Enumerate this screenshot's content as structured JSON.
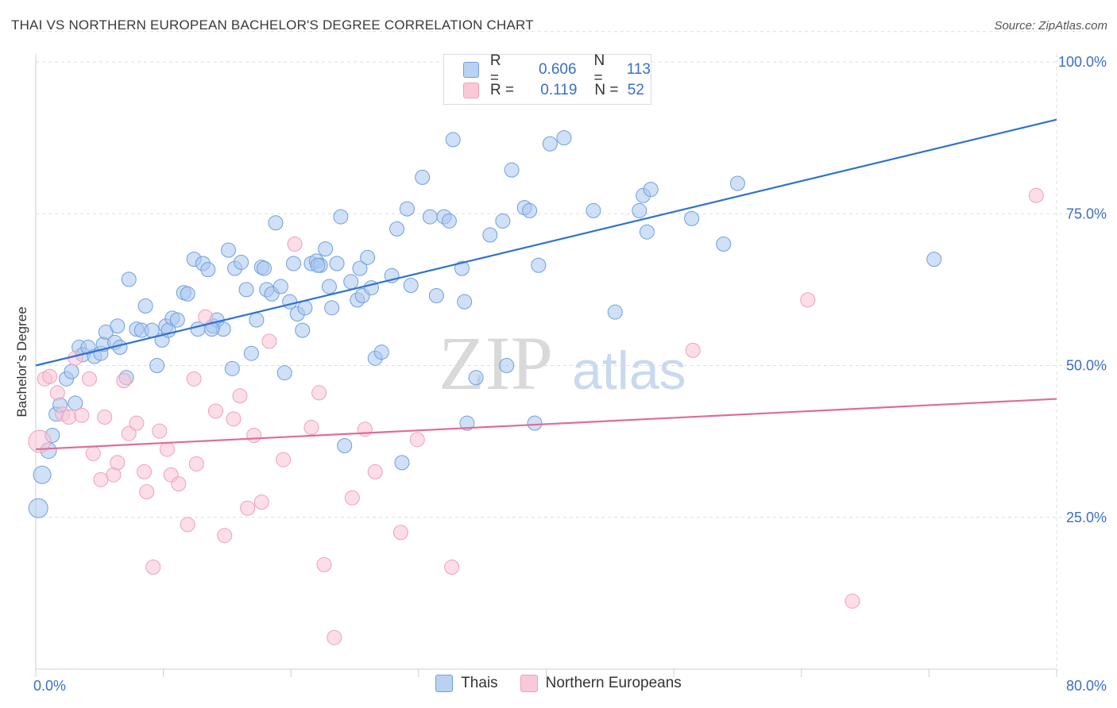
{
  "header": {
    "title": "THAI VS NORTHERN EUROPEAN BACHELOR'S DEGREE CORRELATION CHART",
    "source": "Source: ZipAtlas.com"
  },
  "watermark": {
    "zip": "ZIP",
    "atlas": "atlas"
  },
  "legend": {
    "rows": [
      {
        "r_label": "R =",
        "r_value": "0.606",
        "n_label": "N =",
        "n_value": "113",
        "color": "#6f9fe0"
      },
      {
        "r_label": "R =",
        "r_value": "0.119",
        "n_label": "N =",
        "n_value": "52",
        "color": "#f0a0bb"
      }
    ]
  },
  "bottom_legend": {
    "thais": "Thais",
    "northern_europeans": "Northern Europeans"
  },
  "chart_data": {
    "type": "scatter",
    "title": "THAI VS NORTHERN EUROPEAN BACHELOR'S DEGREE CORRELATION CHART",
    "ylabel": "Bachelor's Degree",
    "xlim": [
      0,
      80
    ],
    "ylim": [
      0,
      105
    ],
    "x_ticks": [
      {
        "v": 0,
        "label": "0.0%"
      },
      {
        "v": 80,
        "label": "80.0%"
      }
    ],
    "y_ticks": [
      {
        "v": 25,
        "label": "25.0%"
      },
      {
        "v": 50,
        "label": "50.0%"
      },
      {
        "v": 75,
        "label": "75.0%"
      },
      {
        "v": 100,
        "label": "100.0%"
      }
    ],
    "grid": true,
    "series": [
      {
        "name": "Thais",
        "color": "#6f9fe0",
        "fill": "#a9c6ee",
        "r": 0.606,
        "n": 113,
        "trend": [
          [
            0,
            50.0
          ],
          [
            80,
            90.5
          ]
        ],
        "points": [
          [
            0.2,
            26.5,
            12
          ],
          [
            0.5,
            32.0,
            11
          ],
          [
            1.0,
            36.0,
            10
          ],
          [
            1.3,
            38.5,
            9
          ],
          [
            1.6,
            42.0,
            9
          ],
          [
            1.9,
            43.5,
            9
          ],
          [
            2.4,
            47.8,
            9
          ],
          [
            2.8,
            49.0,
            9
          ],
          [
            3.1,
            43.8,
            9
          ],
          [
            3.4,
            53.0,
            9
          ],
          [
            3.7,
            51.8,
            9
          ],
          [
            4.1,
            53.0,
            9
          ],
          [
            4.6,
            51.5,
            9
          ],
          [
            5.1,
            52.0,
            9
          ],
          [
            5.3,
            53.5,
            9
          ],
          [
            5.5,
            55.5,
            9
          ],
          [
            6.2,
            53.8,
            9
          ],
          [
            6.4,
            56.5,
            9
          ],
          [
            6.6,
            53.0,
            9
          ],
          [
            7.1,
            48.0,
            9
          ],
          [
            7.3,
            64.2,
            9
          ],
          [
            7.9,
            56.0,
            9
          ],
          [
            8.3,
            55.8,
            9
          ],
          [
            8.6,
            59.8,
            9
          ],
          [
            9.1,
            55.8,
            9
          ],
          [
            9.5,
            50.0,
            9
          ],
          [
            9.9,
            54.2,
            9
          ],
          [
            10.2,
            56.5,
            9
          ],
          [
            10.4,
            55.8,
            9
          ],
          [
            10.7,
            57.8,
            9
          ],
          [
            11.1,
            57.5,
            9
          ],
          [
            11.6,
            62.0,
            9
          ],
          [
            11.9,
            61.8,
            9
          ],
          [
            12.4,
            67.5,
            9
          ],
          [
            12.7,
            56.0,
            9
          ],
          [
            13.1,
            66.8,
            9
          ],
          [
            13.5,
            65.8,
            9
          ],
          [
            13.9,
            56.5,
            9
          ],
          [
            14.2,
            57.5,
            9
          ],
          [
            14.7,
            56.0,
            9
          ],
          [
            15.1,
            69.0,
            9
          ],
          [
            15.4,
            49.5,
            9
          ],
          [
            15.6,
            66.0,
            9
          ],
          [
            16.1,
            67.0,
            9
          ],
          [
            16.5,
            62.5,
            9
          ],
          [
            16.9,
            52.0,
            9
          ],
          [
            17.3,
            57.5,
            9
          ],
          [
            17.7,
            66.2,
            9
          ],
          [
            18.1,
            62.5,
            9
          ],
          [
            18.5,
            61.8,
            9
          ],
          [
            18.8,
            73.5,
            9
          ],
          [
            19.2,
            63.0,
            9
          ],
          [
            19.5,
            48.8,
            9
          ],
          [
            19.9,
            60.5,
            9
          ],
          [
            20.2,
            66.8,
            9
          ],
          [
            20.5,
            58.5,
            9
          ],
          [
            20.9,
            55.8,
            9
          ],
          [
            21.1,
            59.5,
            9
          ],
          [
            21.6,
            66.8,
            9
          ],
          [
            22.0,
            67.2,
            9
          ],
          [
            22.3,
            66.5,
            9
          ],
          [
            22.7,
            69.2,
            9
          ],
          [
            23.0,
            63.0,
            9
          ],
          [
            23.2,
            59.5,
            9
          ],
          [
            23.6,
            66.8,
            9
          ],
          [
            23.9,
            74.5,
            9
          ],
          [
            24.2,
            36.8,
            9
          ],
          [
            24.7,
            63.8,
            9
          ],
          [
            25.2,
            60.8,
            9
          ],
          [
            25.4,
            66.0,
            9
          ],
          [
            25.6,
            61.5,
            9
          ],
          [
            26.0,
            67.8,
            9
          ],
          [
            26.3,
            62.8,
            9
          ],
          [
            26.6,
            51.2,
            9
          ],
          [
            27.1,
            52.2,
            9
          ],
          [
            27.9,
            64.8,
            9
          ],
          [
            28.3,
            72.5,
            9
          ],
          [
            28.7,
            34.0,
            9
          ],
          [
            29.1,
            75.8,
            9
          ],
          [
            29.4,
            63.2,
            9
          ],
          [
            30.3,
            81.0,
            9
          ],
          [
            30.9,
            74.5,
            9
          ],
          [
            31.4,
            61.5,
            9
          ],
          [
            32.0,
            74.5,
            9
          ],
          [
            32.4,
            73.8,
            9
          ],
          [
            32.7,
            87.2,
            9
          ],
          [
            33.4,
            66.0,
            9
          ],
          [
            33.6,
            60.5,
            9
          ],
          [
            33.8,
            40.5,
            9
          ],
          [
            34.5,
            48.0,
            9
          ],
          [
            35.6,
            71.5,
            9
          ],
          [
            36.6,
            73.8,
            9
          ],
          [
            36.9,
            50.0,
            9
          ],
          [
            37.3,
            82.2,
            9
          ],
          [
            38.3,
            76.0,
            9
          ],
          [
            38.7,
            75.5,
            9
          ],
          [
            39.1,
            40.5,
            9
          ],
          [
            39.4,
            66.5,
            9
          ],
          [
            40.3,
            86.5,
            9
          ],
          [
            41.4,
            87.5,
            9
          ],
          [
            43.7,
            75.5,
            9
          ],
          [
            45.4,
            58.8,
            9
          ],
          [
            47.3,
            75.5,
            9
          ],
          [
            47.6,
            78.0,
            9
          ],
          [
            47.9,
            72.0,
            9
          ],
          [
            48.2,
            79.0,
            9
          ],
          [
            51.4,
            74.2,
            9
          ],
          [
            53.9,
            70.0,
            9
          ],
          [
            55.0,
            80.0,
            9
          ],
          [
            70.4,
            67.5,
            9
          ],
          [
            22.1,
            66.5,
            9
          ],
          [
            13.8,
            56.0,
            9
          ],
          [
            17.9,
            66.0,
            9
          ]
        ]
      },
      {
        "name": "Northern Europeans",
        "color": "#f0a0bb",
        "fill": "#f7c3d4",
        "r": 0.119,
        "n": 52,
        "trend": [
          [
            0,
            36.2
          ],
          [
            80,
            44.5
          ]
        ],
        "points": [
          [
            0.3,
            37.5,
            14
          ],
          [
            0.7,
            47.8,
            9
          ],
          [
            1.1,
            48.2,
            9
          ],
          [
            1.7,
            45.5,
            9
          ],
          [
            2.1,
            42.0,
            9
          ],
          [
            2.6,
            41.5,
            9
          ],
          [
            3.1,
            51.2,
            9
          ],
          [
            3.6,
            41.8,
            9
          ],
          [
            4.2,
            47.8,
            9
          ],
          [
            4.5,
            35.5,
            9
          ],
          [
            5.1,
            31.2,
            9
          ],
          [
            5.4,
            41.5,
            9
          ],
          [
            6.1,
            32.0,
            9
          ],
          [
            6.4,
            34.0,
            9
          ],
          [
            6.9,
            47.5,
            9
          ],
          [
            7.3,
            38.8,
            9
          ],
          [
            7.9,
            40.5,
            9
          ],
          [
            8.5,
            32.5,
            9
          ],
          [
            8.7,
            29.2,
            9
          ],
          [
            9.2,
            16.8,
            9
          ],
          [
            9.7,
            39.2,
            9
          ],
          [
            10.3,
            36.2,
            9
          ],
          [
            10.6,
            32.0,
            9
          ],
          [
            11.2,
            30.5,
            9
          ],
          [
            11.9,
            23.8,
            9
          ],
          [
            12.4,
            47.8,
            9
          ],
          [
            12.6,
            33.8,
            9
          ],
          [
            13.3,
            58.0,
            9
          ],
          [
            14.1,
            42.5,
            9
          ],
          [
            14.8,
            22.0,
            9
          ],
          [
            15.5,
            41.2,
            9
          ],
          [
            16.0,
            45.0,
            9
          ],
          [
            16.6,
            26.5,
            9
          ],
          [
            17.1,
            38.5,
            9
          ],
          [
            17.7,
            27.5,
            9
          ],
          [
            18.3,
            54.0,
            9
          ],
          [
            19.4,
            34.5,
            9
          ],
          [
            20.3,
            70.0,
            9
          ],
          [
            21.6,
            39.8,
            9
          ],
          [
            22.2,
            45.5,
            9
          ],
          [
            22.6,
            17.2,
            9
          ],
          [
            23.4,
            5.2,
            9
          ],
          [
            24.8,
            28.2,
            9
          ],
          [
            25.8,
            39.5,
            9
          ],
          [
            26.6,
            32.5,
            9
          ],
          [
            28.6,
            22.5,
            9
          ],
          [
            29.9,
            37.8,
            9
          ],
          [
            32.6,
            16.8,
            9
          ],
          [
            51.5,
            52.5,
            9
          ],
          [
            60.5,
            60.8,
            9
          ],
          [
            64.0,
            11.2,
            9
          ],
          [
            78.4,
            78.0,
            9
          ]
        ]
      }
    ]
  }
}
